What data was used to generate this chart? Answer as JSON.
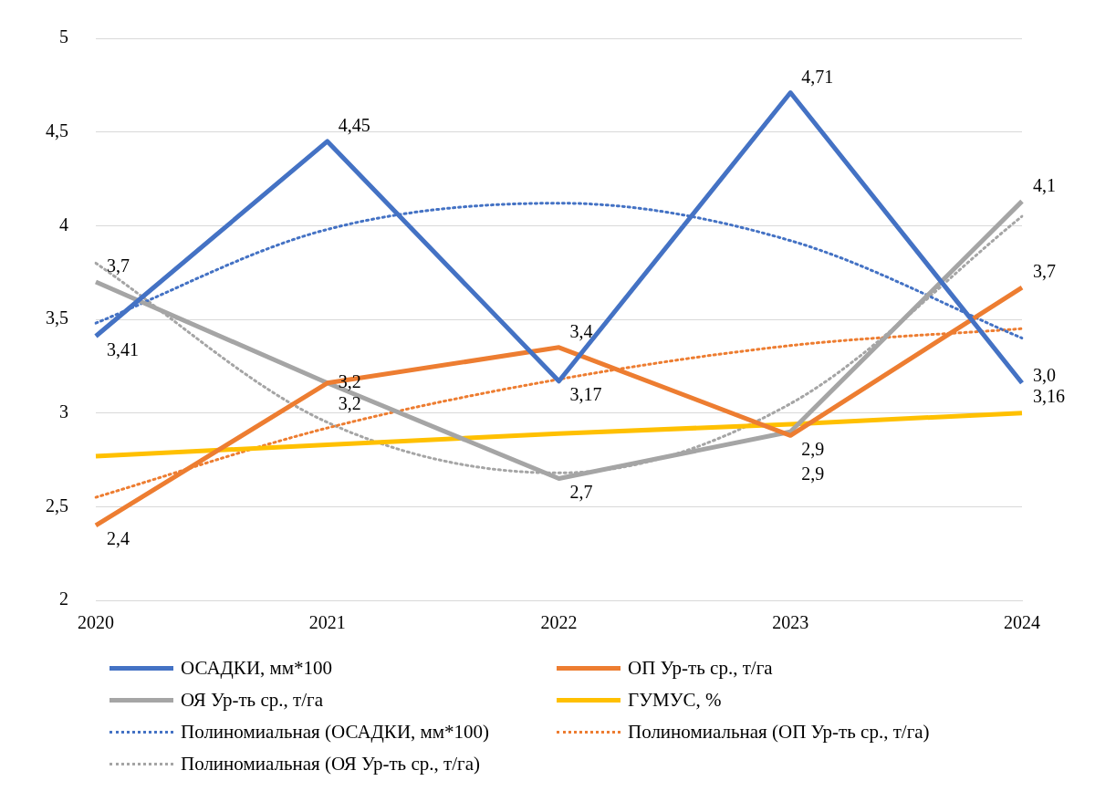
{
  "chart_data": {
    "type": "line",
    "categories": [
      "2020",
      "2021",
      "2022",
      "2023",
      "2024"
    ],
    "series": [
      {
        "name": "ОСАДКИ, мм*100",
        "color": "#4472c4",
        "values": [
          3.41,
          4.45,
          3.17,
          4.71,
          3.16
        ],
        "value_labels": [
          "3,41",
          "4,45",
          "3,17",
          "4,71",
          "3,16"
        ]
      },
      {
        "name": "ОП Ур-ть ср., т/га",
        "color": "#ed7d31",
        "values": [
          2.4,
          3.16,
          3.35,
          2.88,
          3.67
        ],
        "value_labels": [
          "2,4",
          "3,2",
          "3,4",
          "2,9",
          "3,7"
        ]
      },
      {
        "name": "ОЯ Ур-ть ср., т/га",
        "color": "#a5a5a5",
        "values": [
          3.7,
          3.16,
          2.65,
          2.9,
          4.13
        ],
        "value_labels": [
          "3,7",
          "3,2",
          "2,7",
          "2,9",
          "4,1"
        ]
      },
      {
        "name": "ГУМУС, %",
        "color": "#ffc000",
        "values": [
          2.77,
          2.83,
          2.89,
          2.94,
          3.0
        ],
        "value_labels": [
          null,
          null,
          null,
          null,
          "3,0"
        ]
      },
      {
        "name": "Полиномиальная (ОСАДКИ, мм*100)",
        "color": "#4472c4",
        "line_style": "dotted",
        "values": [
          3.48,
          3.98,
          4.12,
          3.92,
          3.4
        ]
      },
      {
        "name": "Полиномиальная (ОП Ур-ть ср., т/га)",
        "color": "#ed7d31",
        "line_style": "dotted",
        "values": [
          2.55,
          2.92,
          3.18,
          3.36,
          3.45
        ]
      },
      {
        "name": "Полиномиальная (ОЯ Ур-ть ср., т/га)",
        "color": "#a5a5a5",
        "line_style": "dotted",
        "values": [
          3.8,
          2.95,
          2.68,
          3.05,
          4.05
        ]
      }
    ],
    "ylim": [
      2,
      5
    ],
    "yticks": [
      {
        "value": 2,
        "label": "2"
      },
      {
        "value": 2.5,
        "label": "2,5"
      },
      {
        "value": 3,
        "label": "3"
      },
      {
        "value": 3.5,
        "label": "3,5"
      },
      {
        "value": 4,
        "label": "4"
      },
      {
        "value": 4.5,
        "label": "4,5"
      },
      {
        "value": 5,
        "label": "5"
      }
    ],
    "grid": "y",
    "legend": "bottom",
    "marker": "none",
    "line_style": "solid"
  }
}
